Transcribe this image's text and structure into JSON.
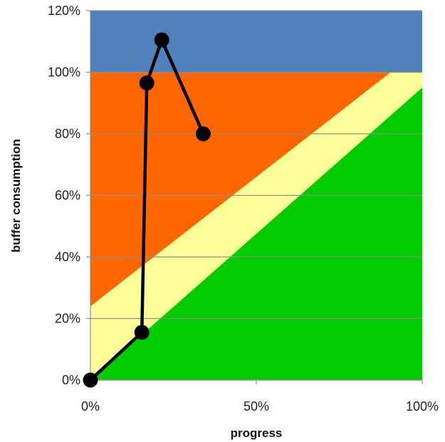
{
  "chart_data": {
    "type": "line",
    "title": "",
    "xlabel": "progress",
    "ylabel": "buffer consumption",
    "xlim": [
      0,
      1
    ],
    "ylim": [
      0,
      1.2
    ],
    "x_ticks": [
      0,
      0.5,
      1
    ],
    "x_tick_labels": [
      "0%",
      "50%",
      "100%"
    ],
    "y_ticks": [
      0,
      0.2,
      0.4,
      0.6,
      0.8,
      1.0,
      1.2
    ],
    "y_tick_labels": [
      "0%",
      "20%",
      "40%",
      "60%",
      "80%",
      "100%",
      "120%"
    ],
    "grid": true,
    "legend": "none",
    "zones": [
      {
        "zone": "black",
        "color": "#4F81BD",
        "y_min": 1.0,
        "y_max": 1.2
      },
      {
        "zone": "red",
        "color": "#FF6600",
        "boundary_low": [
          [
            0,
            0.24
          ],
          [
            0.905,
            1.0
          ]
        ]
      },
      {
        "zone": "yellow",
        "color": "#FFFF99",
        "boundary_low": [
          [
            0,
            0.0
          ],
          [
            1.0,
            0.95
          ]
        ]
      },
      {
        "zone": "green",
        "color": "#00CC00"
      }
    ],
    "series": [
      {
        "color": "#000000",
        "x": [
          0.0,
          0.155,
          0.17,
          0.215,
          0.34
        ],
        "y": [
          0.0,
          0.155,
          0.965,
          1.105,
          0.8
        ]
      }
    ]
  }
}
